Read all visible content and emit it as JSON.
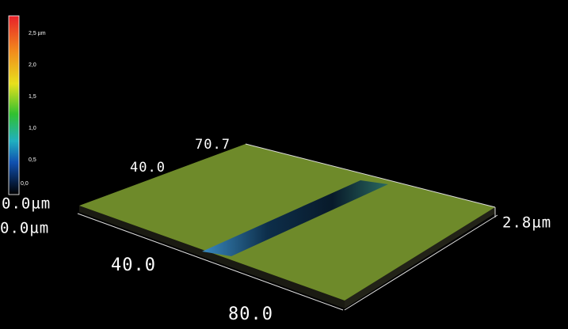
{
  "colorbar": {
    "labels": [
      "2,5 µm",
      "2,0",
      "1,5",
      "1,0",
      "0,5",
      "0,0"
    ]
  },
  "axes": {
    "z_min": "0.0µm",
    "x_min": "0.0µm",
    "y_mid": "40.0",
    "y_max": "70.7",
    "x_mid": "40.0",
    "x_max": "80.0",
    "z_max": "2.8µm"
  }
}
